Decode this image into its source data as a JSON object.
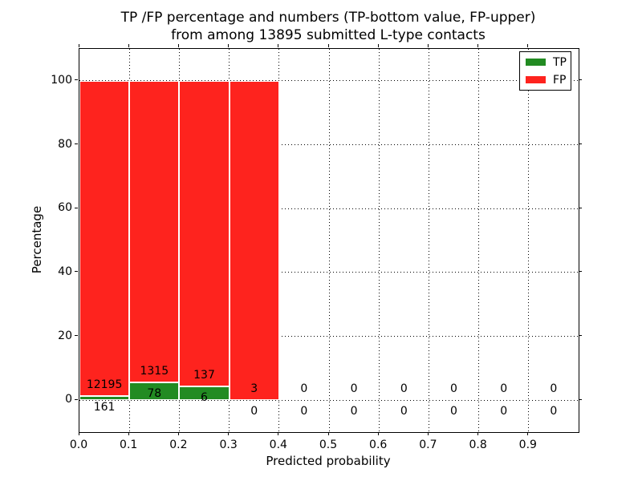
{
  "title": {
    "line1": "TP /FP percentage and numbers (TP-bottom value, FP-upper)",
    "line2": "from among 13895 submitted L-type contacts"
  },
  "chart_data": {
    "type": "bar",
    "stacked": true,
    "title": "TP /FP percentage and numbers (TP-bottom value, FP-upper) from among 13895 submitted L-type contacts",
    "total_submitted": 13895,
    "contact_type": "L-type",
    "xlabel": "Predicted probability",
    "ylabel": "Percentage",
    "xlim": [
      0.0,
      1.0
    ],
    "ylim": [
      -10,
      110
    ],
    "xticks": [
      0.0,
      0.1,
      0.2,
      0.3,
      0.4,
      0.5,
      0.6,
      0.7,
      0.8,
      0.9
    ],
    "xtick_labels": [
      "0.0",
      "0.1",
      "0.2",
      "0.3",
      "0.4",
      "0.5",
      "0.6",
      "0.7",
      "0.8",
      "0.9"
    ],
    "yticks": [
      0,
      20,
      40,
      60,
      80,
      100
    ],
    "ytick_labels": [
      "0",
      "20",
      "40",
      "60",
      "80",
      "100"
    ],
    "grid": true,
    "grid_style": "dotted",
    "bins": [
      [
        0.0,
        0.1
      ],
      [
        0.1,
        0.2
      ],
      [
        0.2,
        0.3
      ],
      [
        0.3,
        0.4
      ],
      [
        0.4,
        0.5
      ],
      [
        0.5,
        0.6
      ],
      [
        0.6,
        0.7
      ],
      [
        0.7,
        0.8
      ],
      [
        0.8,
        0.9
      ],
      [
        0.9,
        1.0
      ]
    ],
    "series": [
      {
        "name": "TP",
        "color": "#228b22",
        "counts": [
          161,
          78,
          6,
          0,
          0,
          0,
          0,
          0,
          0,
          0
        ],
        "percent": [
          1.3,
          5.6,
          4.2,
          0,
          0,
          0,
          0,
          0,
          0,
          0
        ]
      },
      {
        "name": "FP",
        "color": "#fe231e",
        "counts": [
          12195,
          1315,
          137,
          3,
          0,
          0,
          0,
          0,
          0,
          0
        ],
        "percent": [
          98.7,
          94.4,
          95.8,
          100,
          0,
          0,
          0,
          0,
          0,
          0
        ]
      }
    ],
    "legend": {
      "position": "upper right",
      "entries": [
        {
          "label": "TP",
          "color": "#228b22"
        },
        {
          "label": "FP",
          "color": "#fe231e"
        }
      ]
    },
    "annotation_note": "FP count shown above TP count in each bin"
  }
}
